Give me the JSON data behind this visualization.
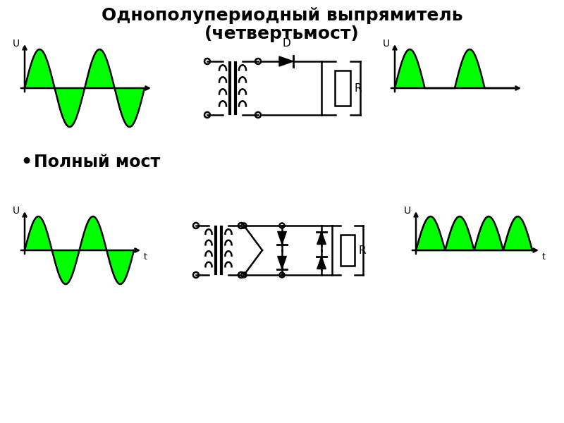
{
  "title_line1": "Однополупериодный выпрямитель",
  "title_line2": "(четвертьмост)",
  "subtitle": "Полный мост",
  "green_fill": "#00FF00",
  "green_edge": "#007700",
  "black": "#000000",
  "white": "#FFFFFF",
  "title_fontsize": 18,
  "subtitle_fontsize": 17,
  "lw": 1.8
}
